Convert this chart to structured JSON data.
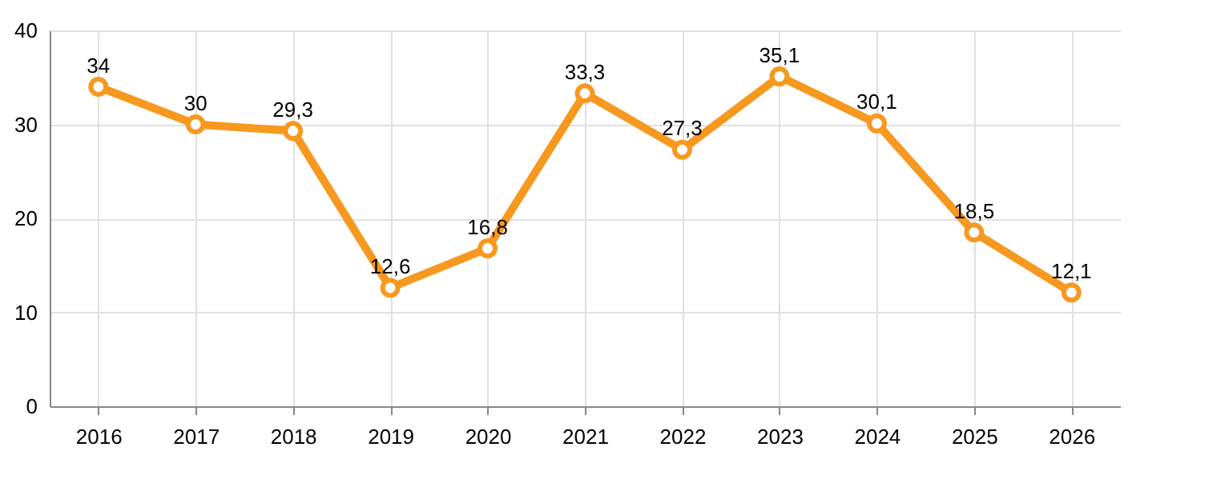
{
  "chart_data": {
    "type": "line",
    "categories": [
      "2016",
      "2017",
      "2018",
      "2019",
      "2020",
      "2021",
      "2022",
      "2023",
      "2024",
      "2025",
      "2026"
    ],
    "values": [
      34,
      30,
      29.3,
      12.6,
      16.8,
      33.3,
      27.3,
      35.1,
      30.1,
      18.5,
      12.1
    ],
    "value_labels": [
      "34",
      "30",
      "29,3",
      "12,6",
      "16,8",
      "33,3",
      "27,3",
      "35,1",
      "30,1",
      "18,5",
      "12,1"
    ],
    "color": "#f7981f",
    "ylim": [
      0,
      40
    ],
    "yticks": [
      0,
      10,
      20,
      30,
      40
    ],
    "grid": true,
    "marker": "circle",
    "line_style": "solid"
  }
}
